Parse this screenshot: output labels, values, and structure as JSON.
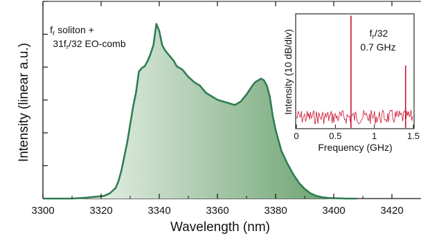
{
  "chart_data": [
    {
      "type": "area",
      "title": "",
      "xlabel": "Wavelength (nm)",
      "ylabel": "Intensity (linear a.u.)",
      "xlim": [
        3300,
        3430
      ],
      "ylim": [
        0,
        1.0
      ],
      "xticks": [
        "3300",
        "3320",
        "3340",
        "3360",
        "3380",
        "3400",
        "3420"
      ],
      "yticks_labeled": false,
      "annotation": {
        "line1": "f",
        "line1_sub": "r",
        "line1_rest": " soliton +",
        "line2": "31f",
        "line2_sub": "r",
        "line2_rest": "/32 EO-comb"
      },
      "line_color": "#2e7d52",
      "fill_color_dark": "#5e9a62",
      "series": [
        {
          "x": [
            3300,
            3305,
            3310,
            3315,
            3318,
            3321,
            3323,
            3325,
            3326,
            3327,
            3328,
            3329,
            3330,
            3331,
            3332,
            3333,
            3334,
            3335,
            3336,
            3337,
            3338,
            3339,
            3340,
            3341,
            3342,
            3343,
            3344,
            3345,
            3346,
            3347,
            3348,
            3349,
            3350,
            3352,
            3354,
            3356,
            3358,
            3360,
            3362,
            3364,
            3366,
            3368,
            3370,
            3372,
            3373,
            3374,
            3375,
            3376,
            3377,
            3378,
            3379,
            3380,
            3381,
            3382,
            3384,
            3386,
            3388,
            3390,
            3392,
            3394,
            3396,
            3398,
            3400,
            3402,
            3404,
            3406,
            3408
          ],
          "y": [
            0.0,
            0.0,
            0.0,
            0.005,
            0.01,
            0.015,
            0.03,
            0.06,
            0.1,
            0.16,
            0.24,
            0.32,
            0.42,
            0.52,
            0.6,
            0.72,
            0.74,
            0.75,
            0.78,
            0.82,
            0.87,
            0.99,
            0.95,
            0.87,
            0.84,
            0.82,
            0.8,
            0.78,
            0.75,
            0.74,
            0.73,
            0.71,
            0.69,
            0.66,
            0.64,
            0.6,
            0.58,
            0.56,
            0.55,
            0.54,
            0.53,
            0.55,
            0.59,
            0.64,
            0.66,
            0.67,
            0.68,
            0.67,
            0.64,
            0.58,
            0.47,
            0.39,
            0.33,
            0.27,
            0.2,
            0.14,
            0.09,
            0.055,
            0.03,
            0.015,
            0.008,
            0.004,
            0.002,
            0.001,
            0.0,
            0.0,
            0.0
          ]
        }
      ]
    },
    {
      "type": "line",
      "title": "",
      "xlabel": "Frequency (GHz)",
      "ylabel": "Intensity (10 dB/div)",
      "xlim": [
        0,
        1.5
      ],
      "xticks": [
        "0",
        "0.5",
        "1",
        "1.5"
      ],
      "annotation": {
        "line1": "f",
        "line1_sub": "r",
        "line1_rest": "/32",
        "line2": "0.7 GHz"
      },
      "line_color": "#c8102e",
      "noise_floor_fraction": 0.16,
      "peaks": [
        {
          "x": 0.7,
          "height_fraction": 0.99
        },
        {
          "x": 1.4,
          "height_fraction": 0.55
        }
      ]
    }
  ]
}
